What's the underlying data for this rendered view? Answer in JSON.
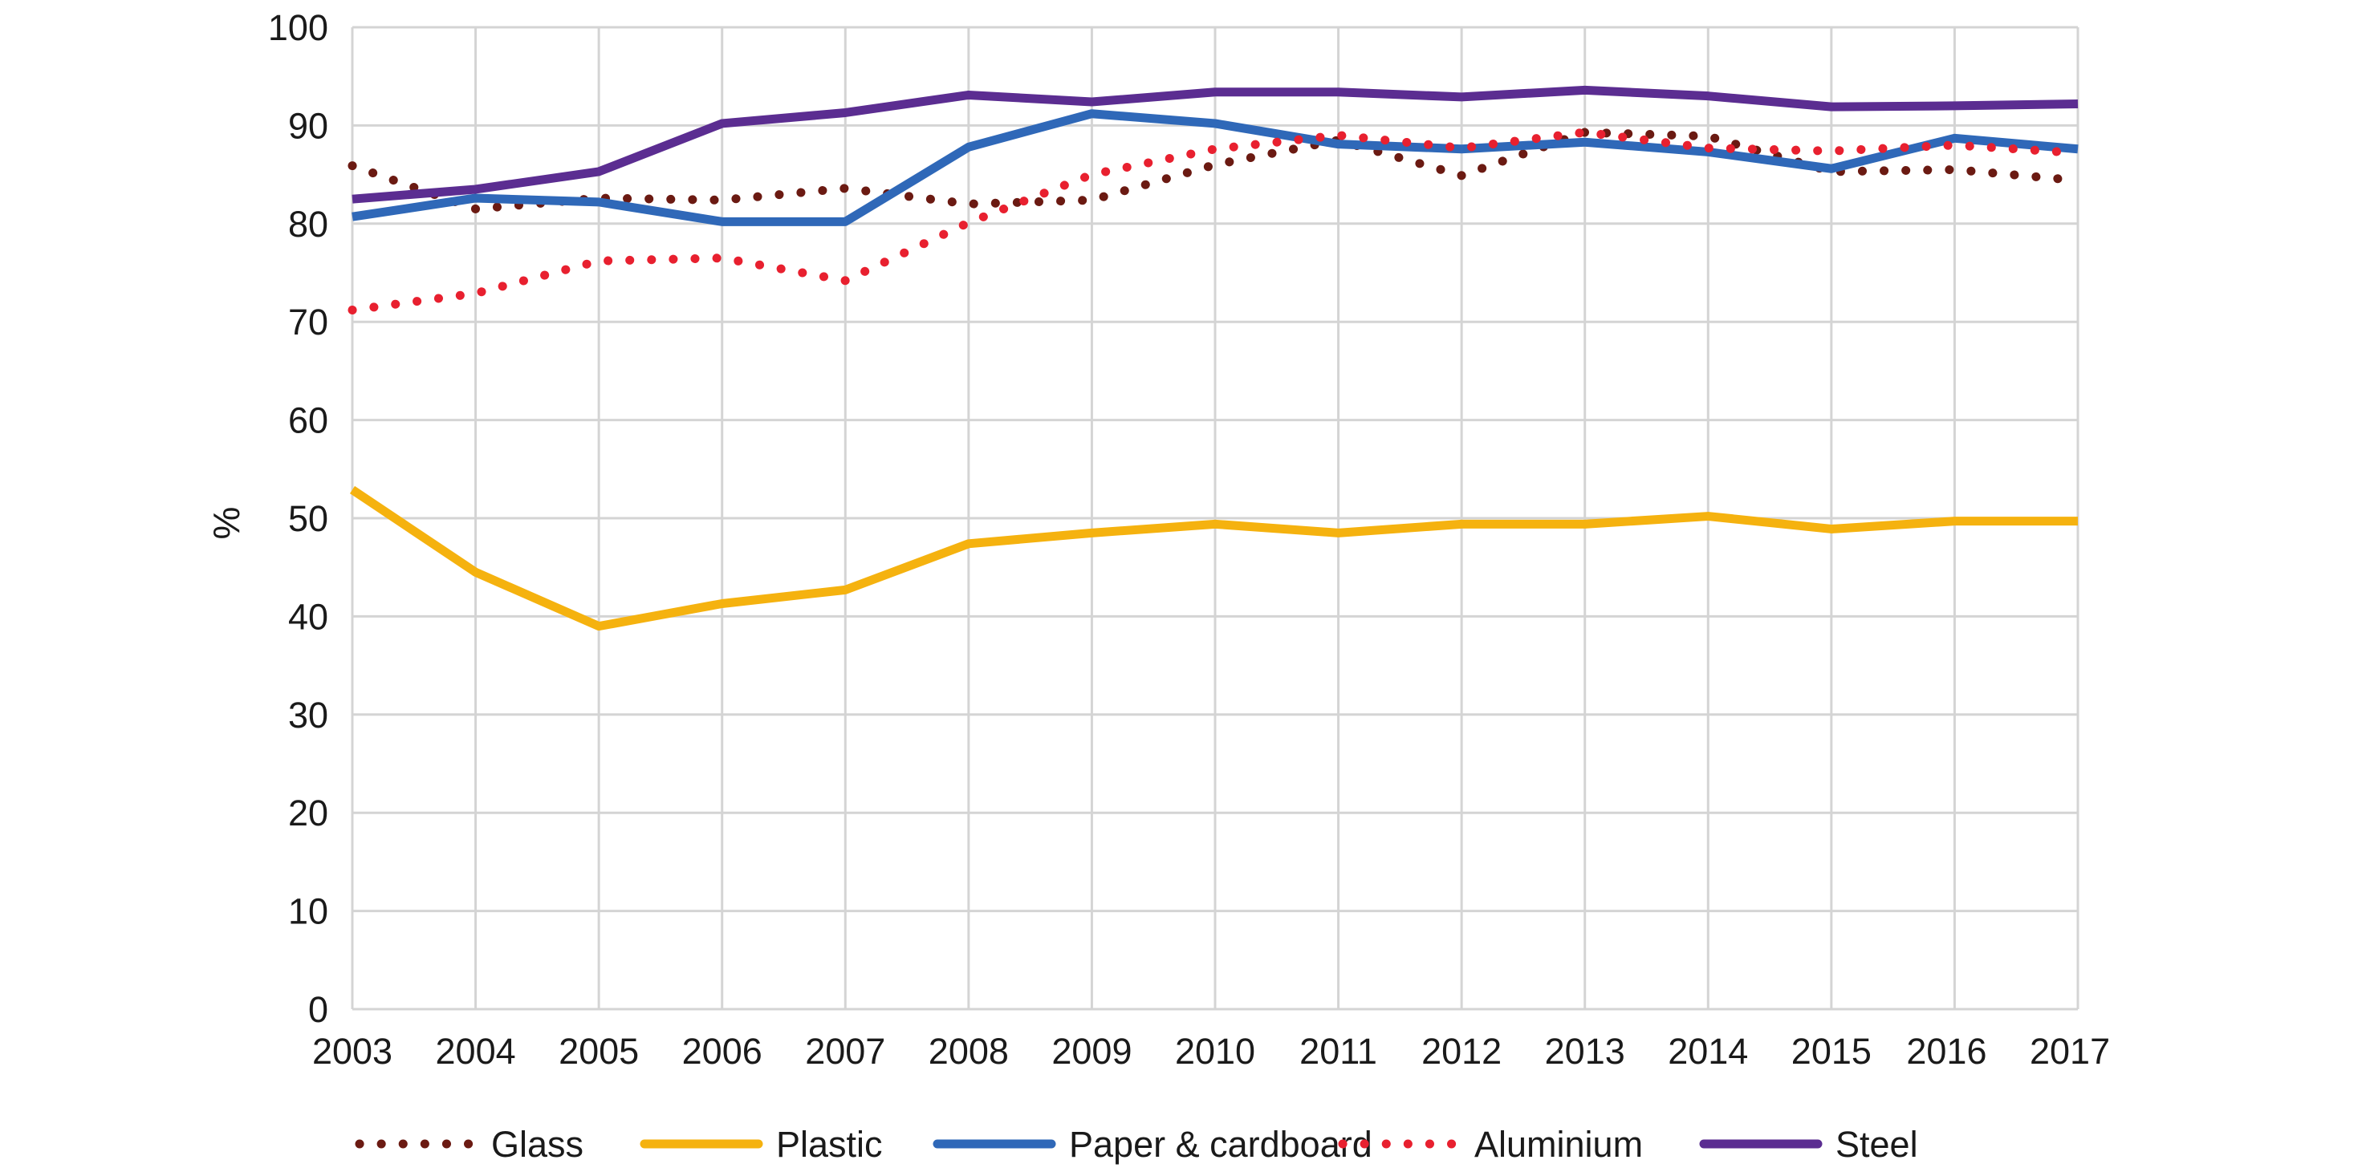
{
  "chart_data": {
    "type": "line",
    "title": "",
    "xlabel": "",
    "ylabel": "%",
    "ylim": [
      0,
      100
    ],
    "yticks": [
      0,
      10,
      20,
      30,
      40,
      50,
      60,
      70,
      80,
      90,
      100
    ],
    "grid": true,
    "legend_position": "bottom",
    "categories": [
      "2003",
      "2004",
      "2005",
      "2006",
      "2007",
      "2008",
      "2009",
      "2010",
      "2011",
      "2012",
      "2013",
      "2014",
      "2015",
      "2016",
      "2017"
    ],
    "series": [
      {
        "name": "Glass",
        "color": "#6b1a12",
        "style": "dotted",
        "values": [
          85.9,
          81.5,
          82.6,
          82.4,
          83.6,
          82.0,
          82.4,
          86.0,
          88.5,
          84.9,
          89.3,
          88.9,
          85.3,
          85.5,
          84.4
        ]
      },
      {
        "name": "Plastic",
        "color": "#f5b20f",
        "style": "solid",
        "values": [
          52.9,
          44.5,
          39.0,
          41.3,
          42.7,
          47.4,
          48.5,
          49.4,
          48.5,
          49.4,
          49.4,
          50.2,
          48.9,
          49.7,
          49.7
        ]
      },
      {
        "name": "Paper & cardboard",
        "color": "#2f68b8",
        "style": "solid",
        "values": [
          80.7,
          82.6,
          82.2,
          80.2,
          80.2,
          87.8,
          91.2,
          90.2,
          88.1,
          87.6,
          88.3,
          87.3,
          85.6,
          88.7,
          87.6
        ]
      },
      {
        "name": "Aluminium",
        "color": "#e8202f",
        "style": "dotted",
        "values": [
          71.2,
          72.9,
          76.2,
          76.5,
          74.2,
          80.1,
          85.0,
          87.6,
          89.0,
          87.7,
          89.3,
          87.7,
          87.4,
          88.0,
          87.2
        ]
      },
      {
        "name": "Steel",
        "color": "#5b2d91",
        "style": "solid",
        "values": [
          82.5,
          83.5,
          85.3,
          90.2,
          91.3,
          93.1,
          92.4,
          93.4,
          93.4,
          92.9,
          93.6,
          93.0,
          91.9,
          92.0,
          92.2
        ]
      }
    ]
  }
}
